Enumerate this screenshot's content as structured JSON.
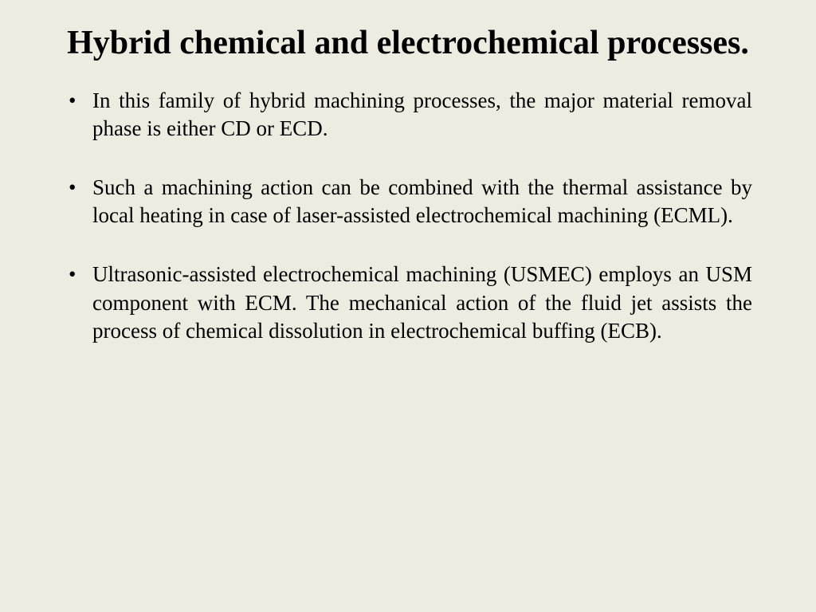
{
  "slide": {
    "background_color": "#eeece1",
    "text_color": "#000000",
    "font_family": "Times New Roman",
    "title": "Hybrid chemical and electrochemical processes.",
    "title_fontsize": 42,
    "title_weight": "bold",
    "body_fontsize": 27,
    "bullets": [
      "In this family of hybrid machining processes, the major material removal phase is either CD or ECD.",
      "Such a machining action can be combined with the thermal assistance by local heating in case of laser-assisted electrochemical machining (ECML).",
      "Ultrasonic-assisted electrochemical machining (USMEC) employs an USM component with ECM. The mechanical action of the fluid jet assists the process of chemical dissolution in electrochemical buffing (ECB)."
    ]
  }
}
